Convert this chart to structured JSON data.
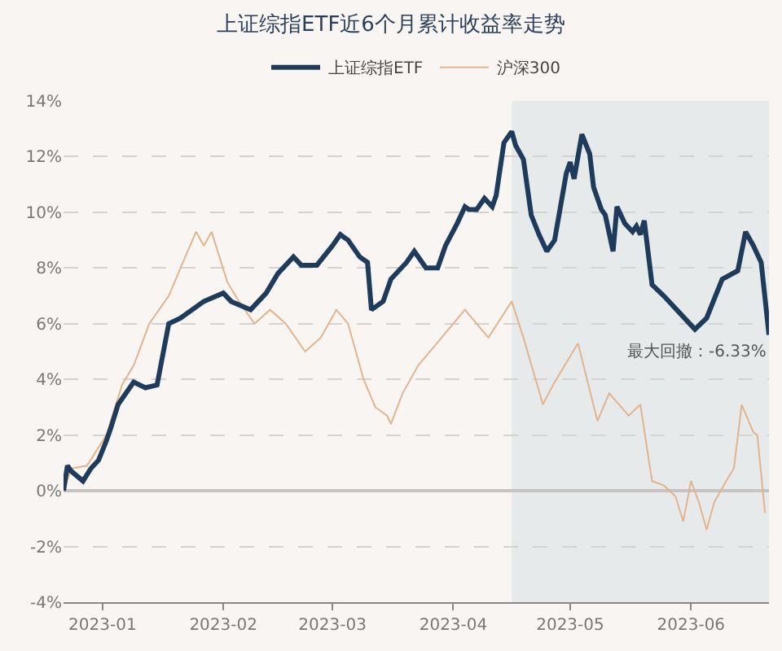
{
  "chart_data": {
    "type": "line",
    "title": "上证综指ETF近6个月累计收益率走势",
    "legend": "top",
    "grid": "y",
    "line_style": "solid",
    "marker": "none",
    "xlim": [
      "2022-12-22",
      "2023-06-21"
    ],
    "xticks": [
      {
        "value": "2023-01-01",
        "label": "2023-01"
      },
      {
        "value": "2023-02-01",
        "label": "2023-02"
      },
      {
        "value": "2023-03-01",
        "label": "2023-03"
      },
      {
        "value": "2023-04-01",
        "label": "2023-04"
      },
      {
        "value": "2023-05-01",
        "label": "2023-05"
      },
      {
        "value": "2023-06-01",
        "label": "2023-06"
      }
    ],
    "ylim": [
      -4,
      14
    ],
    "yticks": [
      {
        "value": -4,
        "label": "-4%"
      },
      {
        "value": -2,
        "label": "-2%"
      },
      {
        "value": 0,
        "label": "0%"
      },
      {
        "value": 2,
        "label": "2%"
      },
      {
        "value": 4,
        "label": "4%"
      },
      {
        "value": 6,
        "label": "6%"
      },
      {
        "value": 8,
        "label": "8%"
      },
      {
        "value": 10,
        "label": "10%"
      },
      {
        "value": 12,
        "label": "12%"
      },
      {
        "value": 14,
        "label": "14%"
      }
    ],
    "bands": [
      {
        "axis": "x",
        "from": "2023-04-16",
        "to": "2023-06-21",
        "label": "最大回撤：-6.33%",
        "color": "#dfe6e8"
      }
    ],
    "series": [
      {
        "name": "沪深300",
        "color": "#e3b48c",
        "x": [
          "2022-12-22",
          "2022-12-24",
          "2022-12-28",
          "2023-01-02",
          "2023-01-06",
          "2023-01-09",
          "2023-01-13",
          "2023-01-18",
          "2023-01-21",
          "2023-01-25",
          "2023-01-27",
          "2023-01-29",
          "2023-02-02",
          "2023-02-05",
          "2023-02-09",
          "2023-02-13",
          "2023-02-17",
          "2023-02-22",
          "2023-02-26",
          "2023-03-02",
          "2023-03-05",
          "2023-03-09",
          "2023-03-12",
          "2023-03-15",
          "2023-03-16",
          "2023-03-19",
          "2023-03-23",
          "2023-03-29",
          "2023-04-04",
          "2023-04-10",
          "2023-04-16",
          "2023-04-19",
          "2023-04-24",
          "2023-04-27",
          "2023-05-03",
          "2023-05-08",
          "2023-05-11",
          "2023-05-16",
          "2023-05-19",
          "2023-05-22",
          "2023-05-25",
          "2023-05-28",
          "2023-05-30",
          "2023-06-01",
          "2023-06-03",
          "2023-06-05",
          "2023-06-07",
          "2023-06-10",
          "2023-06-12",
          "2023-06-14",
          "2023-06-17",
          "2023-06-18",
          "2023-06-20"
        ],
        "values": [
          0,
          0.8,
          0.9,
          2.0,
          3.8,
          4.5,
          6.0,
          7.0,
          8.0,
          9.3,
          8.8,
          9.3,
          7.5,
          6.8,
          6.0,
          6.5,
          6.0,
          5.0,
          5.5,
          6.5,
          6.0,
          4.0,
          3.0,
          2.7,
          2.4,
          3.5,
          4.5,
          5.5,
          6.5,
          5.5,
          6.8,
          5.5,
          3.1,
          3.9,
          5.3,
          2.5,
          3.5,
          2.7,
          3.1,
          0.35,
          0.2,
          -0.2,
          -1.1,
          0.35,
          -0.4,
          -1.4,
          -0.4,
          0.35,
          0.8,
          3.1,
          2.1,
          2.0,
          -0.8
        ]
      },
      {
        "name": "上证综指ETF",
        "color": "#1f3b5c",
        "x": [
          "2022-12-22",
          "2022-12-23",
          "2022-12-24",
          "2022-12-27",
          "2022-12-29",
          "2022-12-31",
          "2023-01-02",
          "2023-01-03",
          "2023-01-05",
          "2023-01-07",
          "2023-01-09",
          "2023-01-12",
          "2023-01-15",
          "2023-01-18",
          "2023-01-21",
          "2023-01-27",
          "2023-02-01",
          "2023-02-03",
          "2023-02-08",
          "2023-02-12",
          "2023-02-15",
          "2023-02-19",
          "2023-02-21",
          "2023-02-25",
          "2023-03-01",
          "2023-03-03",
          "2023-03-05",
          "2023-03-08",
          "2023-03-10",
          "2023-03-11",
          "2023-03-14",
          "2023-03-16",
          "2023-03-20",
          "2023-03-22",
          "2023-03-25",
          "2023-03-28",
          "2023-03-30",
          "2023-04-02",
          "2023-04-04",
          "2023-04-05",
          "2023-04-07",
          "2023-04-09",
          "2023-04-11",
          "2023-04-12",
          "2023-04-14",
          "2023-04-16",
          "2023-04-17",
          "2023-04-19",
          "2023-04-21",
          "2023-04-23",
          "2023-04-25",
          "2023-04-27",
          "2023-04-30",
          "2023-05-01",
          "2023-05-02",
          "2023-05-04",
          "2023-05-06",
          "2023-05-07",
          "2023-05-09",
          "2023-05-10",
          "2023-05-12",
          "2023-05-13",
          "2023-05-15",
          "2023-05-17",
          "2023-05-18",
          "2023-05-19",
          "2023-05-20",
          "2023-05-22",
          "2023-05-25",
          "2023-05-29",
          "2023-06-02",
          "2023-06-05",
          "2023-06-09",
          "2023-06-13",
          "2023-06-15",
          "2023-06-17",
          "2023-06-19",
          "2023-06-21"
        ],
        "values": [
          0,
          0.9,
          0.7,
          0.35,
          0.8,
          1.1,
          1.8,
          2.2,
          3.1,
          3.5,
          3.9,
          3.7,
          3.8,
          6.0,
          6.2,
          6.8,
          7.1,
          6.8,
          6.5,
          7.1,
          7.8,
          8.4,
          8.1,
          8.1,
          8.8,
          9.2,
          9.0,
          8.4,
          8.2,
          6.5,
          6.8,
          7.6,
          8.2,
          8.6,
          8.0,
          8.0,
          8.8,
          9.6,
          10.2,
          10.1,
          10.1,
          10.5,
          10.2,
          10.6,
          12.5,
          12.9,
          12.4,
          11.9,
          9.9,
          9.2,
          8.6,
          9.0,
          11.4,
          11.8,
          11.2,
          12.8,
          12.1,
          10.9,
          10.1,
          9.9,
          8.6,
          10.2,
          9.6,
          9.3,
          9.5,
          9.2,
          9.7,
          7.4,
          7.0,
          6.4,
          5.8,
          6.2,
          7.6,
          7.9,
          9.3,
          8.8,
          8.2,
          5.6
        ]
      }
    ]
  }
}
